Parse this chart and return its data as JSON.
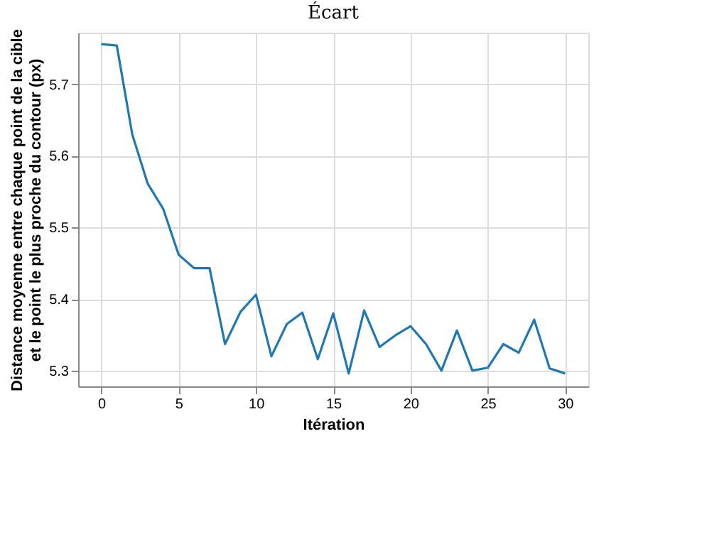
{
  "chart_data": {
    "type": "line",
    "title": "Écart",
    "xlabel": "Itération",
    "ylabel": "Distance moyenne entre chaque point de la cible\net le point le plus proche du contour (px)",
    "x": [
      0,
      1,
      2,
      3,
      4,
      5,
      6,
      7,
      8,
      9,
      10,
      11,
      12,
      13,
      14,
      15,
      16,
      17,
      18,
      19,
      20,
      21,
      22,
      23,
      24,
      25,
      26,
      27,
      28,
      29,
      30
    ],
    "series": [
      {
        "color": "#1f77b4",
        "values": [
          5.756,
          5.754,
          5.63,
          5.561,
          5.526,
          5.462,
          5.443,
          5.443,
          5.337,
          5.382,
          5.406,
          5.32,
          5.365,
          5.381,
          5.316,
          5.38,
          5.296,
          5.384,
          5.333,
          5.349,
          5.362,
          5.337,
          5.3,
          5.356,
          5.3,
          5.304,
          5.337,
          5.325,
          5.371,
          5.303,
          5.296
        ]
      }
    ],
    "xlim": [
      -1.5,
      31.5
    ],
    "xticks": [
      0,
      5,
      10,
      15,
      20,
      25,
      30
    ],
    "ylim": [
      5.278,
      5.772
    ],
    "yticks": [
      5.3,
      5.4,
      5.5,
      5.6,
      5.7
    ],
    "grid": true,
    "legend": false,
    "marker": "none",
    "line_style": "solid"
  }
}
